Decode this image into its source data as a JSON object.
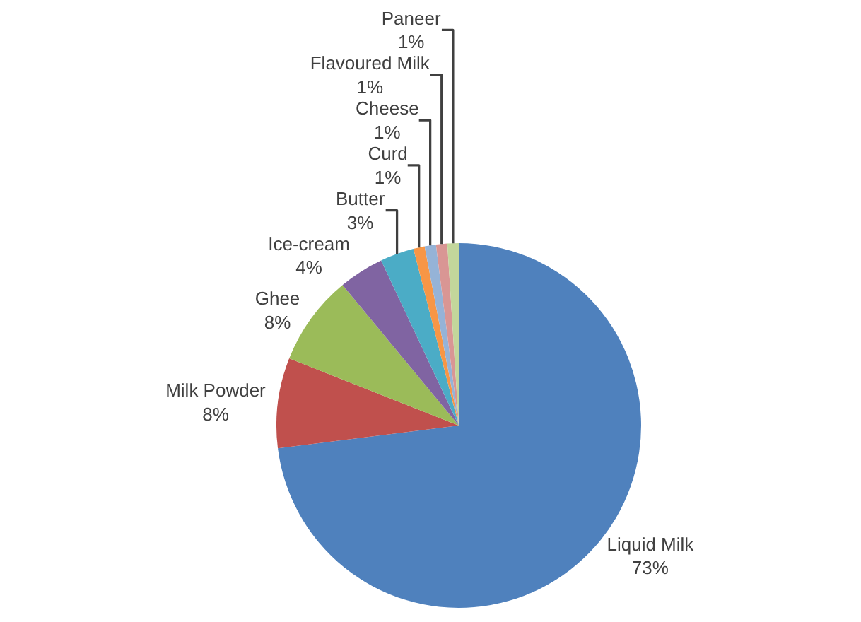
{
  "chart_data": {
    "type": "pie",
    "categories": [
      "Liquid Milk",
      "Milk Powder",
      "Ghee",
      "Ice-cream",
      "Butter",
      "Curd",
      "Cheese",
      "Flavoured Milk",
      "Paneer"
    ],
    "values": [
      73,
      8,
      8,
      4,
      3,
      1,
      1,
      1,
      1
    ],
    "value_labels": [
      "73%",
      "8%",
      "8%",
      "4%",
      "3%",
      "1%",
      "1%",
      "1%",
      "1%"
    ],
    "colors": [
      "#4f81bd",
      "#c0504d",
      "#9bbb59",
      "#8064a2",
      "#4bacc6",
      "#f79646",
      "#95b3d7",
      "#d99694",
      "#c3d69b"
    ],
    "legend": false
  }
}
